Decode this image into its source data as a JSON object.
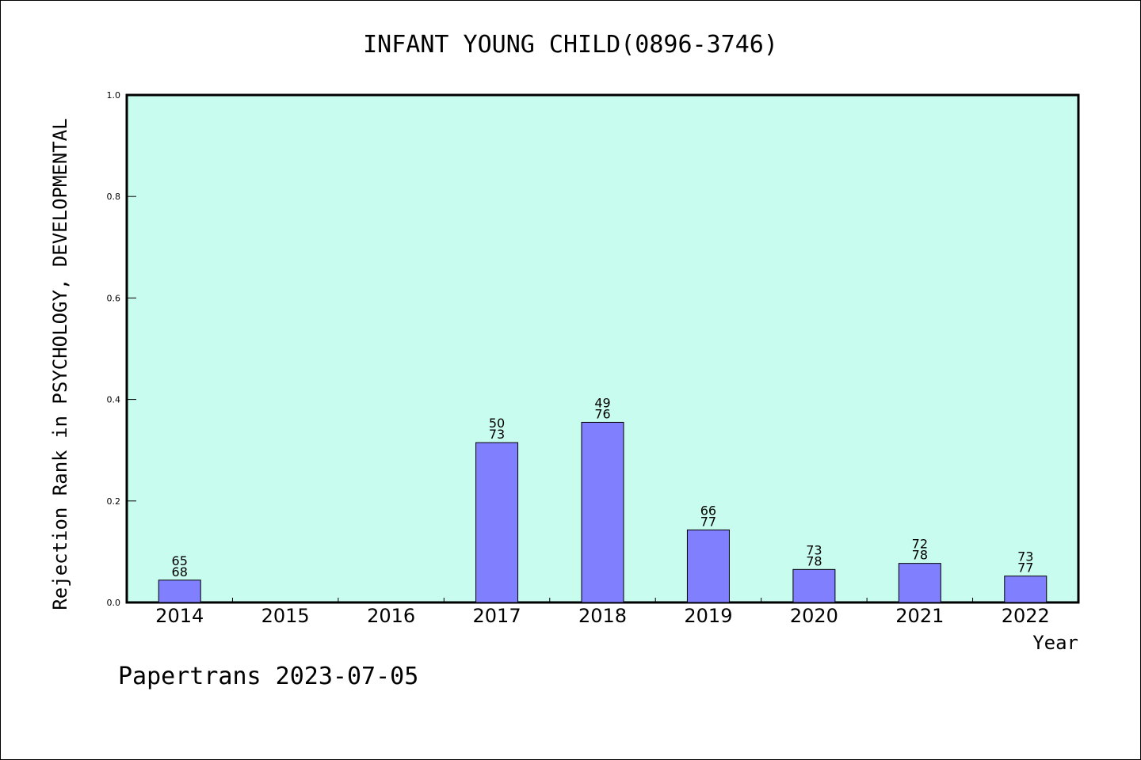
{
  "chart_data": {
    "type": "bar",
    "title": "INFANT YOUNG CHILD(0896-3746)",
    "xlabel": "Year",
    "ylabel": "Rejection Rank in PSYCHOLOGY, DEVELOPMENTAL",
    "ylim": [
      0,
      1.0
    ],
    "yticks": [
      "0.0",
      "0.2",
      "0.4",
      "0.6",
      "0.8",
      "1.0"
    ],
    "categories": [
      "2014",
      "2015",
      "2016",
      "2017",
      "2018",
      "2019",
      "2020",
      "2021",
      "2022"
    ],
    "values": [
      0.044,
      null,
      null,
      0.315,
      0.355,
      0.143,
      0.065,
      0.077,
      0.052
    ],
    "labels": [
      [
        "65",
        "68"
      ],
      null,
      null,
      [
        "50",
        "73"
      ],
      [
        "49",
        "76"
      ],
      [
        "66",
        "77"
      ],
      [
        "73",
        "78"
      ],
      [
        "72",
        "78"
      ],
      [
        "73",
        "77"
      ]
    ],
    "grid": false,
    "colors": {
      "plot_background": "#c8fcee",
      "bar_fill": "#8080ff",
      "bar_stroke": "#000000"
    }
  },
  "footer": "Papertrans 2023-07-05"
}
